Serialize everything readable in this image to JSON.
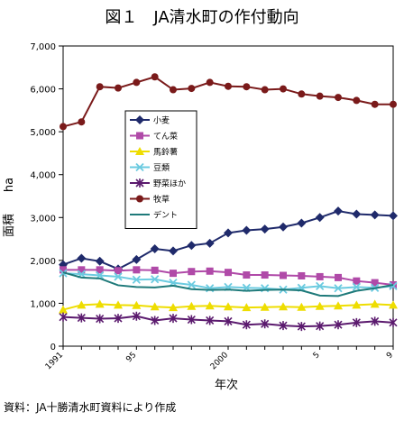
{
  "chart_data": {
    "type": "line",
    "title": "図１　JA清水町の作付動向",
    "xlabel": "年次",
    "ylabel": "面積",
    "yunit": "ha",
    "source": "資料：JA十勝清水町資料により作成",
    "x": [
      1991,
      1992,
      1993,
      1994,
      1995,
      1996,
      1997,
      1998,
      1999,
      2000,
      2001,
      2002,
      2003,
      2004,
      2005,
      2006,
      2007,
      2008,
      2009
    ],
    "xtick_labels": [
      {
        "x": 1991,
        "label": "1991"
      },
      {
        "x": 1995,
        "label": "95"
      },
      {
        "x": 2000,
        "label": "2000"
      },
      {
        "x": 2005,
        "label": "5"
      },
      {
        "x": 2009,
        "label": "9"
      }
    ],
    "ylim": [
      0,
      7000
    ],
    "yticks": [
      {
        "value": 0,
        "label": "0"
      },
      {
        "value": 1000,
        "label": "1,000"
      },
      {
        "value": 2000,
        "label": "2,000"
      },
      {
        "value": 3000,
        "label": "3,000"
      },
      {
        "value": 4000,
        "label": "4,000"
      },
      {
        "value": 5000,
        "label": "5,000"
      },
      {
        "value": 6000,
        "label": "6,000"
      },
      {
        "value": 7000,
        "label": "7,000"
      }
    ],
    "grid": false,
    "legend_position": "upper-left inside",
    "series": [
      {
        "name": "小麦",
        "color": "#1f2a6b",
        "marker": "diamond",
        "values": [
          1900,
          2050,
          1980,
          1800,
          2020,
          2270,
          2220,
          2350,
          2400,
          2640,
          2700,
          2730,
          2780,
          2870,
          3000,
          3150,
          3080,
          3060,
          3040
        ]
      },
      {
        "name": "てん菜",
        "color": "#b04aa8",
        "marker": "square",
        "values": [
          1780,
          1780,
          1780,
          1760,
          1780,
          1770,
          1700,
          1740,
          1750,
          1720,
          1660,
          1660,
          1650,
          1640,
          1620,
          1600,
          1520,
          1480,
          1430
        ]
      },
      {
        "name": "馬鈴薯",
        "color": "#eedd00",
        "marker": "triangle",
        "values": [
          850,
          960,
          980,
          960,
          950,
          920,
          900,
          930,
          940,
          920,
          900,
          910,
          920,
          910,
          930,
          940,
          960,
          980,
          960
        ]
      },
      {
        "name": "豆類",
        "color": "#6ccbe0",
        "marker": "x",
        "values": [
          1700,
          1680,
          1650,
          1620,
          1550,
          1560,
          1480,
          1430,
          1350,
          1380,
          1360,
          1350,
          1320,
          1360,
          1400,
          1350,
          1380,
          1360,
          1400
        ]
      },
      {
        "name": "野菜ほか",
        "color": "#5b1a6e",
        "marker": "asterisk",
        "values": [
          680,
          660,
          640,
          650,
          700,
          600,
          650,
          620,
          600,
          580,
          500,
          520,
          480,
          460,
          470,
          500,
          550,
          580,
          550
        ]
      },
      {
        "name": "牧草",
        "color": "#7a1a1a",
        "marker": "circle",
        "values": [
          5120,
          5230,
          6050,
          6020,
          6150,
          6280,
          5980,
          6010,
          6150,
          6060,
          6050,
          5980,
          6000,
          5880,
          5830,
          5800,
          5730,
          5640,
          5640
        ]
      },
      {
        "name": "デント",
        "color": "#1f7a7a",
        "marker": "none",
        "values": [
          1720,
          1600,
          1580,
          1420,
          1380,
          1370,
          1410,
          1330,
          1310,
          1320,
          1290,
          1310,
          1320,
          1300,
          1180,
          1170,
          1290,
          1350,
          1430
        ]
      }
    ]
  }
}
